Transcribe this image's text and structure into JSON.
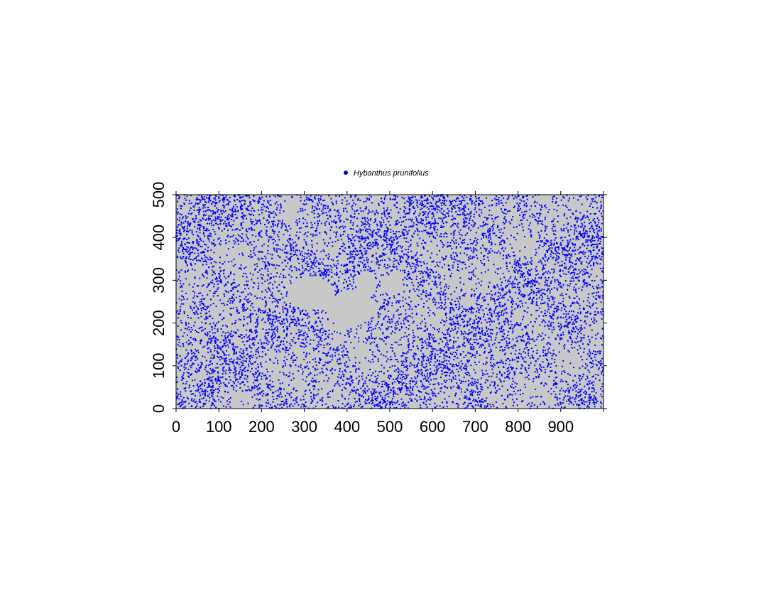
{
  "chart_data": {
    "type": "scatter",
    "title": "",
    "xlabel": "",
    "ylabel": "",
    "xlim": [
      0,
      1000
    ],
    "ylim": [
      0,
      500
    ],
    "x_ticks": [
      0,
      100,
      200,
      300,
      400,
      500,
      600,
      700,
      800,
      900
    ],
    "y_ticks": [
      0,
      100,
      200,
      300,
      400,
      500
    ],
    "grid": false,
    "legend": {
      "position": "top-center",
      "entries": [
        "Hybanthus prunifolius"
      ]
    },
    "background_color": "#c8c8c8",
    "series": [
      {
        "name": "Hybanthus prunifolius",
        "color": "#0000ff",
        "marker": "dot",
        "distribution": "dense clustered point pattern covering the plot; empty gap near x 260–460, y 200–310"
      }
    ]
  }
}
